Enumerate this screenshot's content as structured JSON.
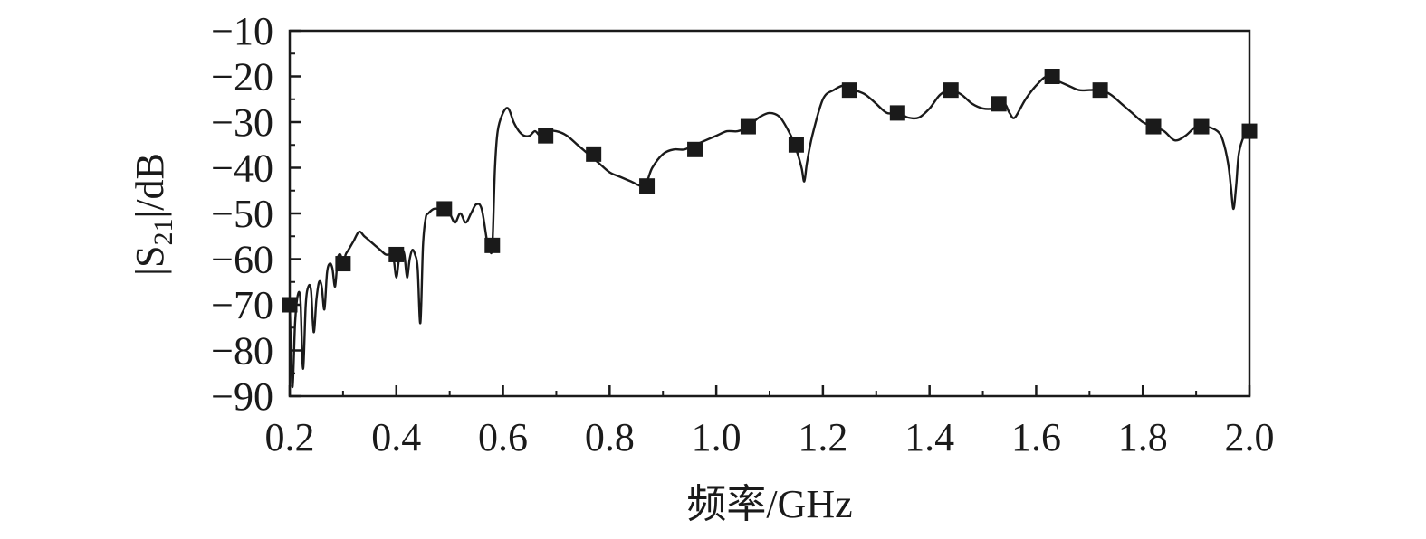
{
  "chart_data": {
    "type": "line",
    "title": "",
    "xlabel": "频率/GHz",
    "ylabel": {
      "prefix": "|S",
      "subscript": "21",
      "suffix": "|/dB"
    },
    "xlim": [
      0.2,
      2.0
    ],
    "ylim": [
      -90,
      -10
    ],
    "xticks": [
      "0.2",
      "0.4",
      "0.6",
      "0.8",
      "1.0",
      "1.2",
      "1.4",
      "1.6",
      "1.8",
      "2.0"
    ],
    "yticks": [
      "−10",
      "−20",
      "−30",
      "−40",
      "−50",
      "−60",
      "−70",
      "−80",
      "−90"
    ],
    "grid": false,
    "legend": "none",
    "line_color": "#1a1a1a",
    "marker": "square",
    "series": [
      {
        "x": [
          0.2,
          0.205,
          0.21,
          0.215,
          0.22,
          0.225,
          0.23,
          0.235,
          0.24,
          0.245,
          0.25,
          0.255,
          0.26,
          0.265,
          0.27,
          0.275,
          0.28,
          0.285,
          0.29,
          0.295,
          0.3,
          0.305,
          0.31,
          0.32,
          0.33,
          0.34,
          0.35,
          0.36,
          0.37,
          0.38,
          0.39,
          0.395,
          0.4,
          0.405,
          0.41,
          0.415,
          0.42,
          0.425,
          0.43,
          0.435,
          0.44,
          0.445,
          0.45,
          0.455,
          0.46,
          0.47,
          0.48,
          0.49,
          0.5,
          0.51,
          0.52,
          0.53,
          0.54,
          0.55,
          0.56,
          0.57,
          0.575,
          0.58,
          0.585,
          0.59,
          0.6,
          0.61,
          0.62,
          0.63,
          0.64,
          0.65,
          0.66,
          0.67,
          0.68,
          0.7,
          0.72,
          0.74,
          0.76,
          0.78,
          0.8,
          0.82,
          0.84,
          0.86,
          0.87,
          0.88,
          0.9,
          0.92,
          0.94,
          0.96,
          0.98,
          1.0,
          1.02,
          1.04,
          1.06,
          1.08,
          1.1,
          1.12,
          1.14,
          1.15,
          1.16,
          1.165,
          1.17,
          1.18,
          1.2,
          1.22,
          1.24,
          1.26,
          1.28,
          1.3,
          1.32,
          1.34,
          1.36,
          1.38,
          1.4,
          1.42,
          1.44,
          1.46,
          1.48,
          1.5,
          1.52,
          1.54,
          1.55,
          1.56,
          1.58,
          1.6,
          1.62,
          1.64,
          1.66,
          1.68,
          1.7,
          1.72,
          1.74,
          1.76,
          1.78,
          1.8,
          1.82,
          1.84,
          1.86,
          1.88,
          1.9,
          1.92,
          1.94,
          1.95,
          1.96,
          1.965,
          1.97,
          1.975,
          1.98,
          1.99,
          2.0
        ],
        "y": [
          -70,
          -88,
          -74,
          -68,
          -69,
          -84,
          -70,
          -66,
          -67,
          -76,
          -69,
          -65,
          -66,
          -71,
          -63,
          -61,
          -62,
          -66,
          -60,
          -59,
          -61,
          -59,
          -58,
          -56,
          -54,
          -55,
          -56,
          -57,
          -58,
          -59,
          -59,
          -60,
          -64,
          -60,
          -58,
          -59,
          -64,
          -60,
          -58,
          -59,
          -62,
          -74,
          -57,
          -51,
          -50,
          -49,
          -49,
          -49,
          -50,
          -52,
          -50,
          -52,
          -50,
          -48,
          -49,
          -56,
          -58,
          -57,
          -40,
          -32,
          -28,
          -27,
          -30,
          -32,
          -33,
          -33,
          -32,
          -33,
          -32,
          -32,
          -33,
          -35,
          -37,
          -39,
          -41,
          -42,
          -43,
          -44,
          -43,
          -40,
          -37,
          -36,
          -36,
          -35,
          -34,
          -33,
          -32,
          -32,
          -31,
          -29,
          -28,
          -29,
          -33,
          -36,
          -40,
          -43,
          -39,
          -33,
          -25,
          -23,
          -22,
          -23,
          -24,
          -26,
          -28,
          -28,
          -29,
          -29,
          -27,
          -24,
          -23,
          -24,
          -26,
          -27,
          -27,
          -26,
          -28,
          -29,
          -25,
          -22,
          -20,
          -21,
          -22,
          -23,
          -23,
          -23,
          -24,
          -26,
          -28,
          -30,
          -31,
          -32,
          -34,
          -33,
          -31,
          -31,
          -32,
          -34,
          -39,
          -44,
          -49,
          -44,
          -37,
          -33,
          -32
        ]
      }
    ],
    "markers": {
      "x": [
        0.2,
        0.3,
        0.4,
        0.49,
        0.58,
        0.68,
        0.77,
        0.87,
        0.96,
        1.06,
        1.15,
        1.25,
        1.34,
        1.44,
        1.53,
        1.63,
        1.72,
        1.82,
        1.91,
        2.0
      ],
      "y": [
        -70,
        -61,
        -59,
        -49,
        -57,
        -33,
        -37,
        -44,
        -36,
        -31,
        -35,
        -23,
        -28,
        -23,
        -26,
        -20,
        -23,
        -31,
        -31,
        -32
      ]
    }
  }
}
